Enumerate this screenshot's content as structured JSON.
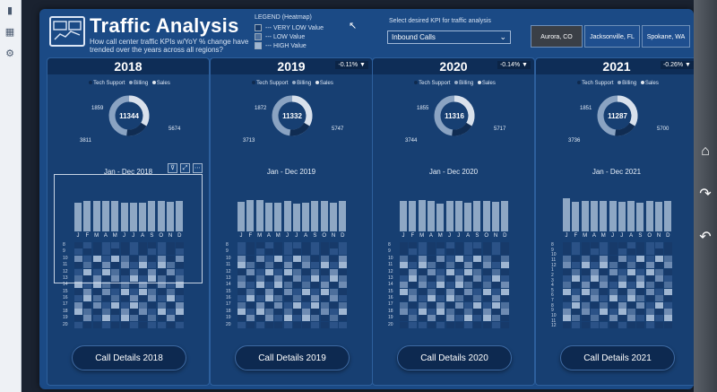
{
  "app": {
    "title": "Traffic Analysis",
    "subtitle": "How call center traffic KPIs w/YoY % change have trended over the years across all regions?"
  },
  "legend": {
    "title": "LEGEND (Heatmap)",
    "items": [
      {
        "label": "--- VERY LOW Value",
        "color": "#173a6a"
      },
      {
        "label": "--- LOW Value",
        "color": "#4d6f9c"
      },
      {
        "label": "--- HIGH Value",
        "color": "#9fb6d2"
      }
    ]
  },
  "kpi_selector": {
    "label": "Select desired KPI for traffic analysis",
    "value": "Inbound Calls"
  },
  "regions": [
    {
      "label": "Aurora, CO",
      "selected": true
    },
    {
      "label": "Jacksonville, FL",
      "selected": false
    },
    {
      "label": "Spokane, WA",
      "selected": false
    }
  ],
  "donut_legend": {
    "items": [
      "Tech Support",
      "Billing",
      "Sales"
    ]
  },
  "months": [
    "J",
    "F",
    "M",
    "A",
    "M",
    "J",
    "J",
    "A",
    "S",
    "O",
    "N",
    "D"
  ],
  "hours": [
    "8",
    "9",
    "10",
    "11",
    "12",
    "13",
    "14",
    "15",
    "16",
    "17",
    "18",
    "19",
    "20"
  ],
  "hours_2021": [
    "8",
    "9",
    "10",
    "11",
    "12",
    "1",
    "2",
    "3",
    "4",
    "5",
    "6",
    "7",
    "8",
    "9",
    "10",
    "11",
    "12"
  ],
  "colors": {
    "accent": "#1b4a85",
    "panel": "#173f72",
    "bar": "#8ea7c4"
  },
  "panels": [
    {
      "year": "2018",
      "yoy": "",
      "total": "11344",
      "top": "1859",
      "left": "3811",
      "right": "5674",
      "range": "Jan - Dec 2018",
      "button": "Call Details 2018",
      "bars": [
        0.74,
        0.78,
        0.8,
        0.78,
        0.78,
        0.74,
        0.74,
        0.74,
        0.8,
        0.78,
        0.76,
        0.78
      ]
    },
    {
      "year": "2019",
      "yoy": "-0.11% ▼",
      "total": "11332",
      "top": "1872",
      "left": "3713",
      "right": "5747",
      "range": "Jan - Dec 2019",
      "button": "Call Details 2019",
      "bars": [
        0.76,
        0.82,
        0.82,
        0.74,
        0.74,
        0.78,
        0.72,
        0.74,
        0.78,
        0.8,
        0.74,
        0.78
      ]
    },
    {
      "year": "2020",
      "yoy": "-0.14% ▼",
      "total": "11316",
      "top": "1855",
      "left": "3744",
      "right": "5717",
      "range": "Jan - Dec 2020",
      "button": "Call Details 2020",
      "bars": [
        0.78,
        0.8,
        0.82,
        0.8,
        0.72,
        0.78,
        0.78,
        0.74,
        0.78,
        0.78,
        0.76,
        0.78
      ]
    },
    {
      "year": "2021",
      "yoy": "-0.26% ▼",
      "total": "11287",
      "top": "1851",
      "left": "3736",
      "right": "5700",
      "range": "Jan - Dec 2021",
      "button": "Call Details 2021",
      "bars": [
        0.86,
        0.76,
        0.8,
        0.78,
        0.78,
        0.8,
        0.76,
        0.78,
        0.74,
        0.78,
        0.76,
        0.78
      ]
    }
  ]
}
